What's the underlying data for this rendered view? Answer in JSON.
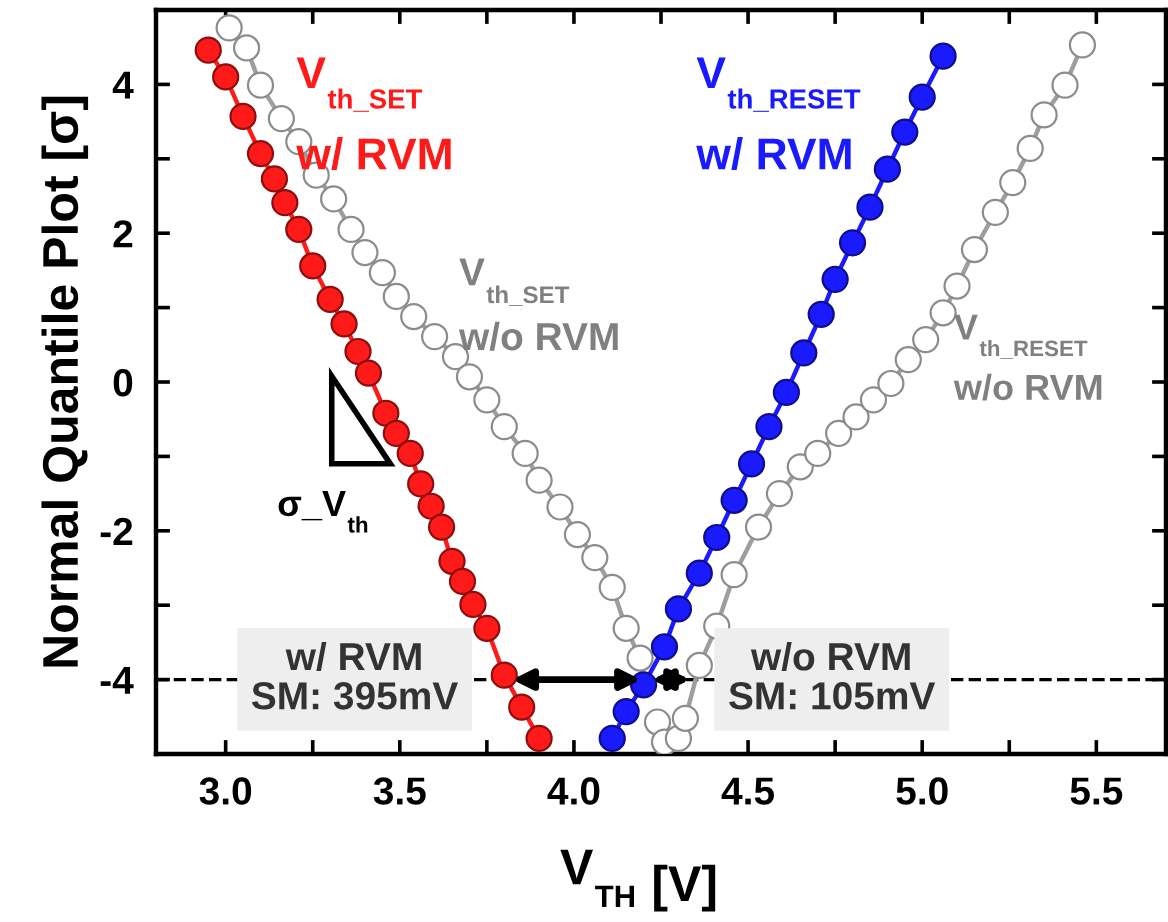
{
  "chart_data": {
    "type": "line",
    "xlabel": "V$_{TH}$ [V]",
    "ylabel": "Normal Quantile Plot [σ]",
    "xlim": [
      2.8,
      5.7
    ],
    "ylim": [
      -5,
      5
    ],
    "xticks": [
      {
        "value": 3.0,
        "label": "3.0"
      },
      {
        "value": 3.25,
        "label": null
      },
      {
        "value": 3.5,
        "label": "3.5"
      },
      {
        "value": 3.75,
        "label": null
      },
      {
        "value": 4.0,
        "label": "4.0"
      },
      {
        "value": 4.25,
        "label": null
      },
      {
        "value": 4.5,
        "label": "4.5"
      },
      {
        "value": 4.75,
        "label": null
      },
      {
        "value": 5.0,
        "label": "5.0"
      },
      {
        "value": 5.25,
        "label": null
      },
      {
        "value": 5.5,
        "label": "5.5"
      }
    ],
    "yticks": [
      -4,
      {
        "value": -3,
        "label": null
      },
      -2,
      {
        "value": -1,
        "label": null
      },
      0,
      {
        "value": 1,
        "label": null
      },
      2,
      {
        "value": 3,
        "label": null
      },
      4
    ],
    "marker": "circle",
    "line_style": "solid",
    "grid": false,
    "series": [
      {
        "color": "#ffffff",
        "x": [
          3.01,
          3.06,
          3.1,
          3.16,
          3.21,
          3.26,
          3.31,
          3.36,
          3.4,
          3.45,
          3.49,
          3.54,
          3.6,
          3.66,
          3.7,
          3.75,
          3.8,
          3.86,
          3.9,
          3.96,
          4.01,
          4.06,
          4.11,
          4.15,
          4.19,
          4.22,
          4.24,
          4.26
        ],
        "values": [
          4.76,
          4.49,
          3.99,
          3.54,
          3.23,
          2.78,
          2.46,
          2.05,
          1.74,
          1.47,
          1.15,
          0.88,
          0.61,
          0.34,
          0.07,
          -0.24,
          -0.6,
          -0.96,
          -1.32,
          -1.68,
          -2.05,
          -2.36,
          -2.76,
          -3.31,
          -3.71,
          null,
          -4.57,
          -4.84
        ]
      },
      {
        "color": "#ffffff",
        "x": [
          4.3,
          4.32,
          4.36,
          4.41,
          4.46,
          4.53,
          4.59,
          4.65,
          4.7,
          4.76,
          4.81,
          4.86,
          4.91,
          4.96,
          5.01,
          5.06,
          5.1,
          5.15,
          5.21,
          5.26,
          5.31,
          5.35,
          5.41,
          5.46
        ],
        "values": [
          -4.79,
          -4.52,
          -3.81,
          -3.28,
          -2.59,
          -1.95,
          -1.5,
          -1.14,
          -0.96,
          -0.69,
          -0.47,
          -0.24,
          -0.02,
          0.3,
          0.57,
          0.93,
          1.29,
          1.78,
          2.28,
          2.68,
          3.14,
          3.59,
          3.99,
          4.53
        ]
      },
      {
        "color": "#ff1a1a",
        "x": [
          2.95,
          3.0,
          3.05,
          3.1,
          3.14,
          3.17,
          3.21,
          3.25,
          3.3,
          3.34,
          3.38,
          3.41,
          3.46,
          3.49,
          3.53,
          3.56,
          3.59,
          3.62,
          3.65,
          3.68,
          3.71,
          3.75,
          3.8,
          3.85,
          3.9
        ],
        "values": [
          4.46,
          4.1,
          3.57,
          3.07,
          2.73,
          2.41,
          2.05,
          1.56,
          1.11,
          0.78,
          0.41,
          0.12,
          -0.42,
          -0.69,
          -0.96,
          -1.37,
          -1.67,
          -1.95,
          -2.41,
          -2.68,
          -2.99,
          -3.31,
          -3.94,
          -4.37,
          -4.79
        ]
      },
      {
        "color": "#1a1aff",
        "x": [
          4.11,
          4.15,
          4.2,
          4.26,
          4.3,
          4.36,
          4.41,
          4.46,
          4.51,
          4.56,
          4.61,
          4.66,
          4.71,
          4.75,
          4.8,
          4.85,
          4.9,
          4.95,
          5.0,
          5.06
        ],
        "values": [
          -4.79,
          -4.43,
          -4.07,
          -3.56,
          -3.05,
          -2.57,
          -2.09,
          -1.59,
          -1.1,
          -0.6,
          -0.14,
          0.39,
          0.91,
          1.38,
          1.87,
          2.35,
          2.86,
          3.36,
          3.83,
          4.38
        ]
      }
    ],
    "ref_lines": [
      {
        "axis": "y",
        "value": -4,
        "color": "#000000",
        "line_style": "dashed"
      }
    ],
    "annotations": [
      "V$_{th_SET}$",
      "w/ RVM",
      "V$_{th_SET}$",
      "w/o RVM",
      "V$_{th_RESET}$",
      "w/ RVM",
      "V$_{th_RESET}$",
      "w/o RVM",
      "σ_V$_{th}$",
      {
        "text": "w/ RVM\nSM: 395mV",
        "x": 3.37,
        "y": -4
      },
      {
        "text": "w/o RVM\nSM: 105mV",
        "x": 4.74,
        "y": -4
      }
    ]
  }
}
